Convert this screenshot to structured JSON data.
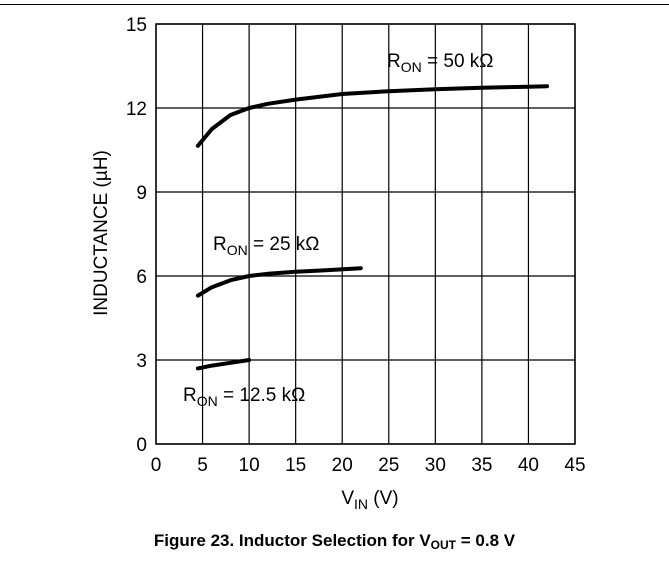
{
  "chart_data": {
    "type": "line",
    "xlabel": {
      "main": "V",
      "sub": "IN",
      "unit": " (V)"
    },
    "ylabel": "INDUCTANCE (µH)",
    "xlim": [
      0,
      45
    ],
    "ylim": [
      0,
      15
    ],
    "xticks": [
      0,
      5,
      10,
      15,
      20,
      25,
      30,
      35,
      40,
      45
    ],
    "yticks": [
      0,
      3,
      6,
      9,
      12,
      15
    ],
    "grid": true,
    "line_color": "#000000",
    "series": [
      {
        "label": {
          "main": "R",
          "sub": "ON",
          "rest": " = 50 kΩ"
        },
        "x": [
          4.5,
          6,
          8,
          10,
          12,
          15,
          20,
          25,
          30,
          35,
          40,
          42
        ],
        "y": [
          10.65,
          11.25,
          11.75,
          12.0,
          12.15,
          12.3,
          12.5,
          12.6,
          12.67,
          12.72,
          12.76,
          12.78
        ]
      },
      {
        "label": {
          "main": "R",
          "sub": "ON",
          "rest": " = 25 kΩ"
        },
        "x": [
          4.5,
          6,
          8,
          10,
          12,
          15,
          18,
          22
        ],
        "y": [
          5.3,
          5.6,
          5.85,
          6.0,
          6.08,
          6.15,
          6.2,
          6.28
        ]
      },
      {
        "label": {
          "main": "R",
          "sub": "ON",
          "rest": " = 12.5 kΩ"
        },
        "x": [
          4.5,
          6,
          8,
          10
        ],
        "y": [
          2.7,
          2.8,
          2.9,
          3.0
        ]
      }
    ]
  },
  "caption": {
    "prefix": "Figure 23. Inductor Selection for V",
    "sub": "OUT",
    "suffix": " = 0.8 V"
  }
}
